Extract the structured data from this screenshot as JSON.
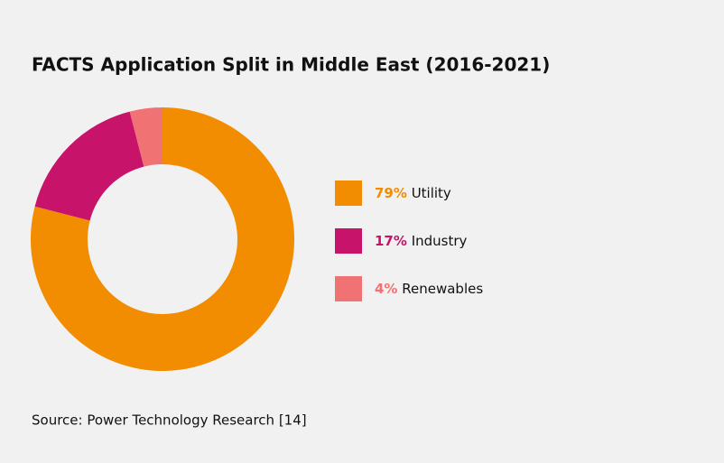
{
  "chart_data": {
    "type": "pie",
    "title": "FACTS Application Split in Middle East (2016-2021)",
    "categories": [
      "Utility",
      "Industry",
      "Renewables"
    ],
    "values": [
      79,
      17,
      4
    ],
    "value_labels": [
      "79%",
      "17%",
      "4%"
    ],
    "colors": [
      "#f28c00",
      "#c8136b",
      "#f07272"
    ],
    "source": "Source: Power Technology Research [14]"
  }
}
